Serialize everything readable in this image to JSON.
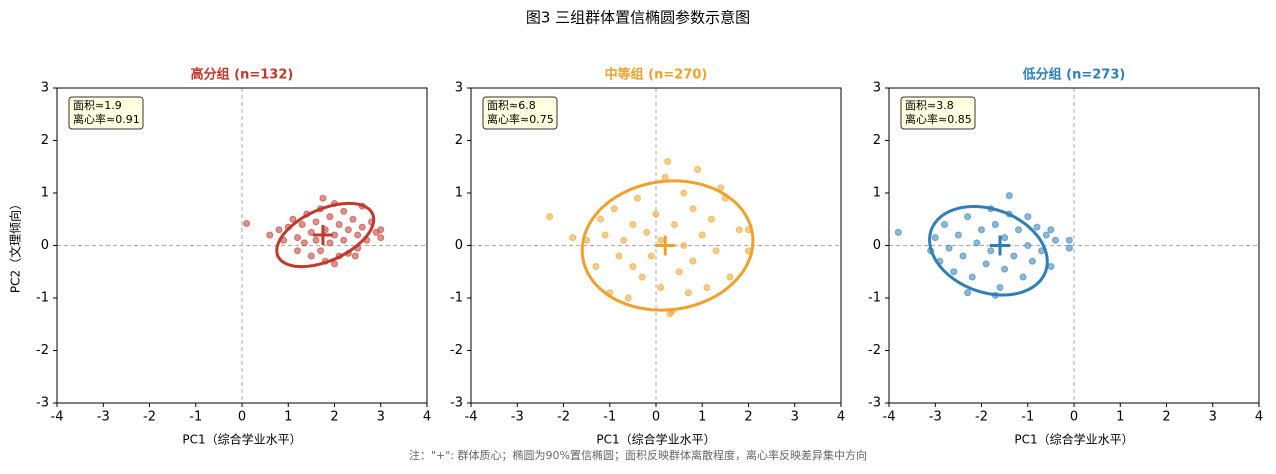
{
  "title": "图3  三组群体置信椭圆参数示意图",
  "note": "注：\"+\": 群体质心；椭圆为90%置信椭圆；面积反映群体离散程度，离心率反映差异集中方向",
  "chart_data": [
    {
      "type": "scatter",
      "title": "高分组 (n=132)",
      "x_label": "PC1（综合学业水平）",
      "y_label": "PC2（文理倾向）",
      "color": "#c0392b",
      "xlim": [
        -4,
        4
      ],
      "ylim": [
        -3,
        3
      ],
      "xticks": [
        -4,
        -3,
        -2,
        -1,
        0,
        1,
        2,
        3,
        4
      ],
      "yticks": [
        -3,
        -2,
        -1,
        0,
        1,
        2,
        3
      ],
      "annotation": [
        "面积≈1.9",
        "离心率≈0.91"
      ],
      "centroid": [
        1.75,
        0.2
      ],
      "ellipse": {
        "cx": 1.8,
        "cy": 0.2,
        "width": 2.2,
        "height": 1.0,
        "angle": 20
      },
      "x": [
        0.1,
        0.6,
        0.8,
        0.9,
        1.0,
        1.1,
        1.2,
        1.2,
        1.3,
        1.35,
        1.4,
        1.5,
        1.5,
        1.6,
        1.6,
        1.7,
        1.7,
        1.8,
        1.8,
        1.9,
        1.9,
        2.0,
        2.0,
        2.0,
        2.1,
        2.1,
        2.2,
        2.2,
        2.3,
        2.3,
        2.4,
        2.5,
        2.5,
        2.6,
        2.6,
        2.7,
        2.8,
        2.9,
        3.0,
        3.0,
        1.75,
        2.45
      ],
      "values": [
        0.42,
        0.2,
        0.3,
        0.1,
        0.35,
        0.5,
        0.15,
        -0.1,
        0.4,
        0.05,
        0.6,
        0.25,
        -0.2,
        0.45,
        0.1,
        0.7,
        -0.1,
        0.3,
        -0.3,
        0.55,
        0.05,
        0.8,
        0.2,
        -0.35,
        0.4,
        -0.2,
        0.65,
        0.1,
        0.3,
        -0.15,
        0.5,
        0.2,
        -0.05,
        0.75,
        0.35,
        0.1,
        0.45,
        0.25,
        0.3,
        0.15,
        0.9,
        -0.2
      ]
    },
    {
      "type": "scatter",
      "title": "中等组 (n=270)",
      "x_label": "PC1（综合学业水平）",
      "color": "#f0a12a",
      "xlim": [
        -4,
        4
      ],
      "ylim": [
        -3,
        3
      ],
      "xticks": [
        -4,
        -3,
        -2,
        -1,
        0,
        1,
        2,
        3,
        4
      ],
      "yticks": [
        -3,
        -2,
        -1,
        0,
        1,
        2,
        3
      ],
      "annotation": [
        "面积≈6.8",
        "离心率≈0.75"
      ],
      "centroid": [
        0.2,
        0.0
      ],
      "ellipse": {
        "cx": 0.25,
        "cy": 0.0,
        "width": 3.7,
        "height": 2.45,
        "angle": 5
      },
      "x": [
        -2.3,
        -1.5,
        -1.3,
        -1.2,
        -1.1,
        -1.0,
        -0.9,
        -0.8,
        -0.7,
        -0.6,
        -0.5,
        -0.5,
        -0.4,
        -0.3,
        -0.2,
        -0.1,
        0,
        0.1,
        0.1,
        0.2,
        0.25,
        0.3,
        0.35,
        0.4,
        0.5,
        0.6,
        0.6,
        0.7,
        0.8,
        0.8,
        0.9,
        1.0,
        1.1,
        1.2,
        1.3,
        1.5,
        1.6,
        1.8,
        2.0,
        2.0,
        -1.8,
        1.4
      ],
      "values": [
        0.55,
        0.1,
        -0.4,
        0.5,
        0.2,
        -0.9,
        0.7,
        -0.2,
        0.1,
        -1.0,
        0.4,
        -0.4,
        0.9,
        -0.6,
        0.25,
        -0.2,
        0.6,
        -0.8,
        0.1,
        1.3,
        1.6,
        -1.3,
        -1.25,
        0.4,
        -0.5,
        1.0,
        0.0,
        -0.9,
        0.7,
        -0.3,
        1.45,
        0.2,
        -0.8,
        0.5,
        -0.1,
        0.9,
        -0.6,
        0.3,
        0.3,
        -0.1,
        0.15,
        1.1
      ]
    },
    {
      "type": "scatter",
      "title": "低分组 (n=273)",
      "x_label": "PC1（综合学业水平）",
      "color": "#2e7fb8",
      "xlim": [
        -4,
        4
      ],
      "ylim": [
        -3,
        3
      ],
      "xticks": [
        -4,
        -3,
        -2,
        -1,
        0,
        1,
        2,
        3,
        4
      ],
      "yticks": [
        -3,
        -2,
        -1,
        0,
        1,
        2,
        3
      ],
      "annotation": [
        "面积≈3.8",
        "离心率≈0.85"
      ],
      "centroid": [
        -1.6,
        0.0
      ],
      "ellipse": {
        "cx": -1.85,
        "cy": -0.1,
        "width": 2.6,
        "height": 1.6,
        "angle": -15
      },
      "x": [
        -3.8,
        -3.1,
        -3.0,
        -2.9,
        -2.8,
        -2.7,
        -2.6,
        -2.5,
        -2.4,
        -2.3,
        -2.2,
        -2.1,
        -2.0,
        -1.9,
        -1.8,
        -1.8,
        -1.7,
        -1.6,
        -1.5,
        -1.5,
        -1.4,
        -1.4,
        -1.3,
        -1.2,
        -1.1,
        -1.0,
        -1.0,
        -0.9,
        -0.8,
        -0.7,
        -0.6,
        -0.5,
        -0.4,
        -0.1,
        -0.1,
        -2.3,
        -1.7,
        -0.5
      ],
      "values": [
        0.25,
        -0.1,
        0.15,
        -0.3,
        0.4,
        -0.05,
        -0.5,
        0.2,
        -0.2,
        0.55,
        -0.6,
        0.05,
        0.3,
        -0.35,
        0.7,
        -0.1,
        0.4,
        -0.8,
        0.15,
        -0.45,
        0.95,
        0.6,
        -0.2,
        0.3,
        -0.6,
        0.55,
        0.0,
        -0.3,
        0.35,
        -0.1,
        0.2,
        -0.4,
        0.1,
        0.1,
        -0.05,
        -0.9,
        -0.95,
        0.3
      ]
    }
  ]
}
